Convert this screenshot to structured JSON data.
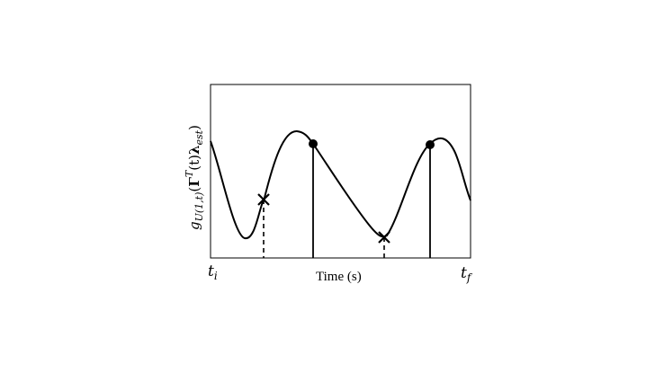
{
  "x_axis": {
    "label": "Time (s)",
    "start_label": {
      "base": "t",
      "sub": "i"
    },
    "end_label": {
      "base": "t",
      "sub": "f"
    }
  },
  "y_axis": {
    "label": {
      "g": "g",
      "g_sub": "U(1,t)",
      "open": "(",
      "gamma": "Γ",
      "gamma_sup": "T",
      "t_arg": "(t)",
      "lambda": "λ",
      "lambda_sub": "est",
      "close": ")"
    }
  },
  "markers": {
    "cross_symbol": "×",
    "circle_symbol": "●",
    "line_styles": {
      "cross": "dashed",
      "circle": "solid"
    }
  },
  "colors": {
    "line": "#000000",
    "background": "#ffffff"
  }
}
